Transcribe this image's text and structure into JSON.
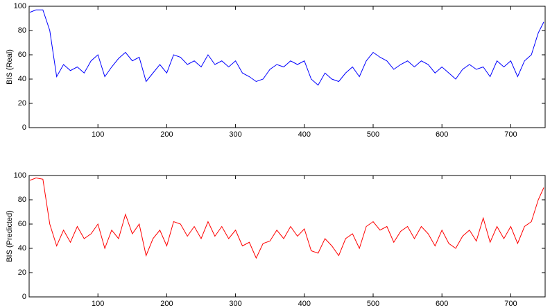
{
  "chart_data": [
    {
      "type": "line",
      "ylabel": "BIS (Real)",
      "x": [
        1,
        10,
        20,
        30,
        40,
        50,
        60,
        70,
        80,
        90,
        100,
        110,
        120,
        130,
        140,
        150,
        160,
        170,
        180,
        190,
        200,
        210,
        220,
        230,
        240,
        250,
        260,
        270,
        280,
        290,
        300,
        310,
        320,
        330,
        340,
        350,
        360,
        370,
        380,
        390,
        400,
        410,
        420,
        430,
        440,
        450,
        460,
        470,
        480,
        490,
        500,
        510,
        520,
        530,
        540,
        550,
        560,
        570,
        580,
        590,
        600,
        610,
        620,
        630,
        640,
        650,
        660,
        670,
        680,
        690,
        700,
        710,
        720,
        730,
        740,
        748
      ],
      "series": [
        {
          "name": "BIS (Real)",
          "color": "#0000ff",
          "values": [
            95,
            97,
            97,
            80,
            42,
            52,
            47,
            50,
            45,
            55,
            60,
            42,
            50,
            57,
            62,
            55,
            58,
            38,
            45,
            52,
            45,
            60,
            58,
            52,
            55,
            50,
            60,
            52,
            55,
            50,
            55,
            45,
            42,
            38,
            40,
            48,
            52,
            50,
            55,
            52,
            55,
            40,
            35,
            45,
            40,
            38,
            45,
            50,
            42,
            55,
            62,
            58,
            55,
            48,
            52,
            55,
            50,
            55,
            52,
            45,
            50,
            45,
            40,
            48,
            52,
            48,
            50,
            42,
            55,
            50,
            55,
            42,
            55,
            60,
            78,
            87
          ]
        }
      ],
      "xlim": [
        0,
        750
      ],
      "ylim": [
        0,
        100
      ],
      "xticks": [
        100,
        200,
        300,
        400,
        500,
        600,
        700
      ],
      "yticks": [
        0,
        20,
        40,
        60,
        80,
        100
      ]
    },
    {
      "type": "line",
      "ylabel": "BIS (Predicted)",
      "x": [
        1,
        10,
        20,
        30,
        40,
        50,
        60,
        70,
        80,
        90,
        100,
        110,
        120,
        130,
        140,
        150,
        160,
        170,
        180,
        190,
        200,
        210,
        220,
        230,
        240,
        250,
        260,
        270,
        280,
        290,
        300,
        310,
        320,
        330,
        340,
        350,
        360,
        370,
        380,
        390,
        400,
        410,
        420,
        430,
        440,
        450,
        460,
        470,
        480,
        490,
        500,
        510,
        520,
        530,
        540,
        550,
        560,
        570,
        580,
        590,
        600,
        610,
        620,
        630,
        640,
        650,
        660,
        670,
        680,
        690,
        700,
        710,
        720,
        730,
        740,
        748
      ],
      "series": [
        {
          "name": "BIS (Predicted)",
          "color": "#ff0000",
          "values": [
            96,
            98,
            97,
            60,
            42,
            55,
            45,
            58,
            48,
            52,
            60,
            40,
            55,
            48,
            68,
            52,
            60,
            34,
            48,
            55,
            42,
            62,
            60,
            50,
            58,
            48,
            62,
            50,
            58,
            48,
            55,
            42,
            45,
            32,
            44,
            46,
            55,
            48,
            58,
            50,
            56,
            38,
            36,
            48,
            42,
            34,
            48,
            52,
            40,
            58,
            62,
            55,
            58,
            45,
            54,
            58,
            48,
            58,
            52,
            42,
            55,
            44,
            40,
            50,
            55,
            46,
            65,
            45,
            58,
            48,
            58,
            44,
            58,
            62,
            80,
            90
          ]
        }
      ],
      "xlim": [
        0,
        750
      ],
      "ylim": [
        0,
        100
      ],
      "xticks": [
        100,
        200,
        300,
        400,
        500,
        600,
        700
      ],
      "yticks": [
        0,
        20,
        40,
        60,
        80,
        100
      ]
    }
  ]
}
